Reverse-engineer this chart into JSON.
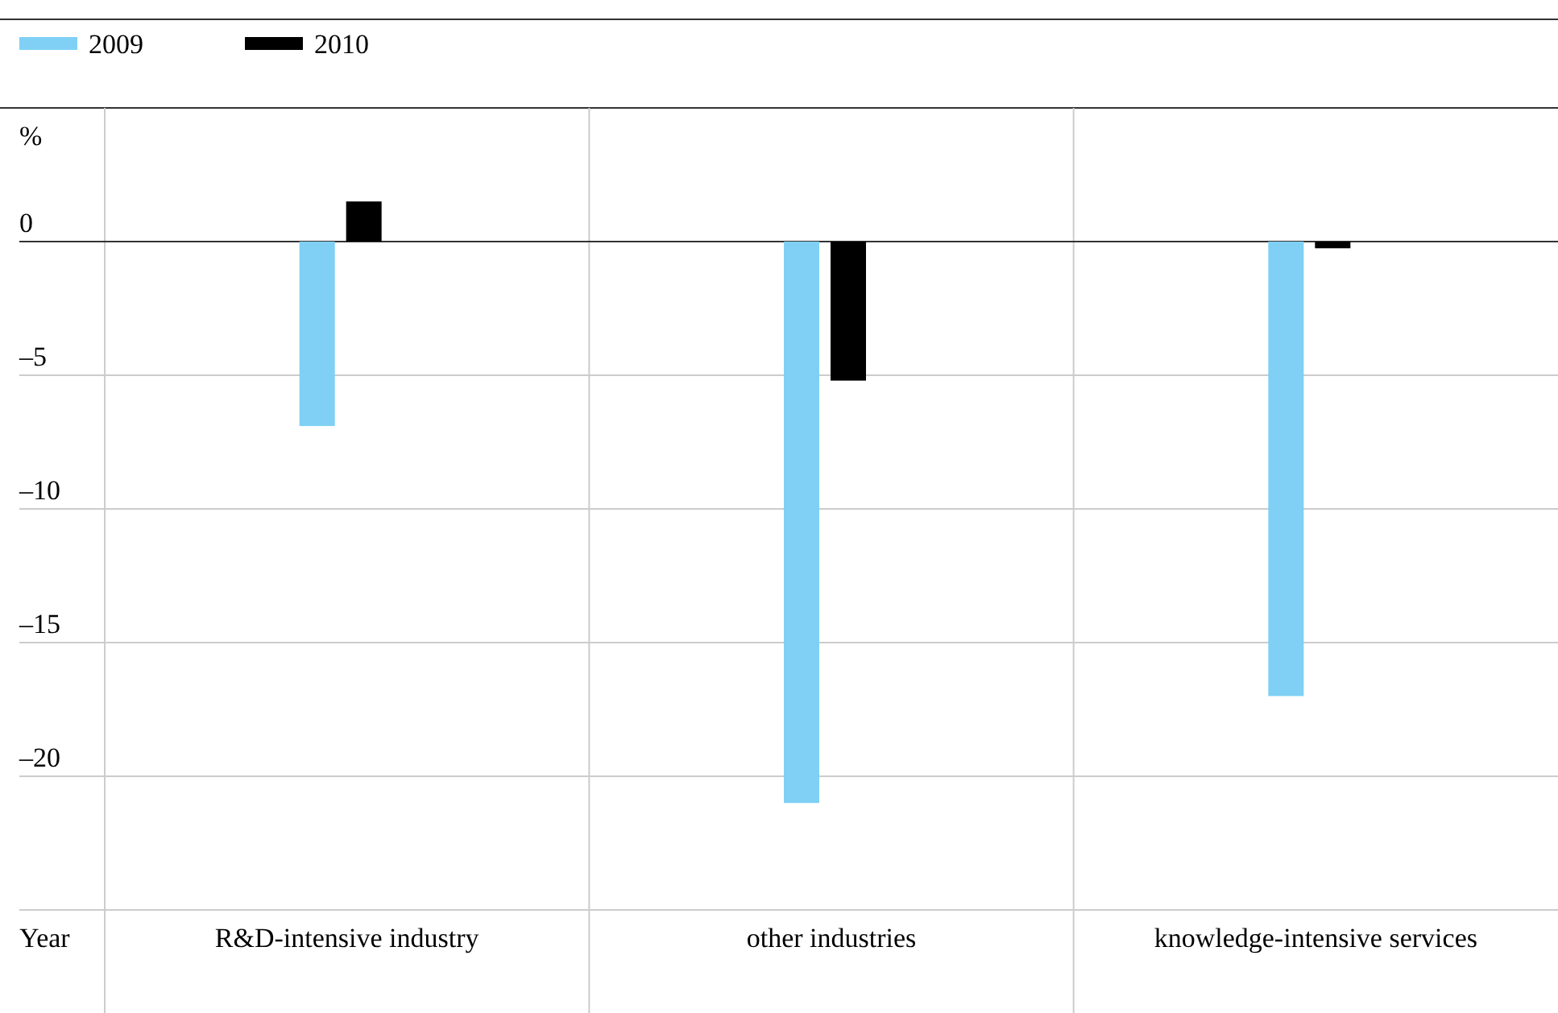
{
  "chart_data": {
    "type": "bar",
    "xlabel": "Year",
    "ylabel": "%",
    "categories": [
      "R&D-intensive industry",
      "other industries",
      "knowledge-intensive services"
    ],
    "series": [
      {
        "name": "2009",
        "color": "#7fd0f4",
        "values": [
          -6.9,
          -21,
          -17
        ]
      },
      {
        "name": "2010",
        "color": "#000000",
        "values": [
          1.5,
          -5.2,
          -0.25
        ]
      }
    ],
    "ylim": [
      -25,
      5
    ],
    "yticks": [
      {
        "value": -20,
        "label": "–20"
      },
      {
        "value": -15,
        "label": "–15"
      },
      {
        "value": -10,
        "label": "–10"
      },
      {
        "value": -5,
        "label": "–5"
      },
      0
    ],
    "grid": true,
    "legend": "top left"
  }
}
